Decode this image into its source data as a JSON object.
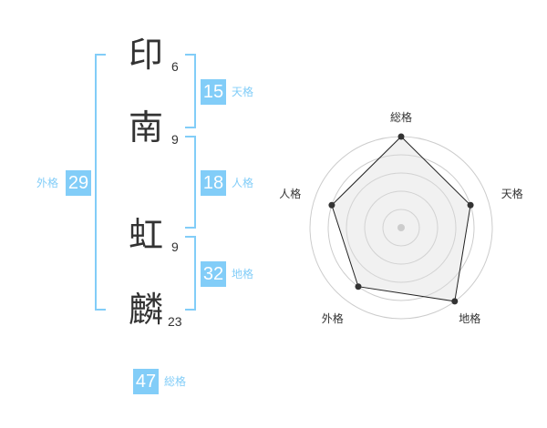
{
  "name": [
    {
      "char": "印",
      "strokes": "6"
    },
    {
      "char": "南",
      "strokes": "9"
    },
    {
      "char": "虹",
      "strokes": "9"
    },
    {
      "char": "麟",
      "strokes": "23"
    }
  ],
  "kaku": {
    "tenkaku": {
      "value": "15",
      "label": "天格"
    },
    "jinkaku": {
      "value": "18",
      "label": "人格"
    },
    "chikaku": {
      "value": "32",
      "label": "地格"
    },
    "gaikaku": {
      "value": "29",
      "label": "外格"
    },
    "soukaku": {
      "value": "47",
      "label": "総格"
    }
  },
  "colors": {
    "accent": "#82cdf8",
    "text": "#333333"
  },
  "chart_data": {
    "type": "radar",
    "axes": [
      "総格",
      "天格",
      "地格",
      "外格",
      "人格"
    ],
    "values": [
      5,
      4,
      5,
      4,
      4
    ],
    "range": [
      0,
      5
    ],
    "rings": 5
  }
}
